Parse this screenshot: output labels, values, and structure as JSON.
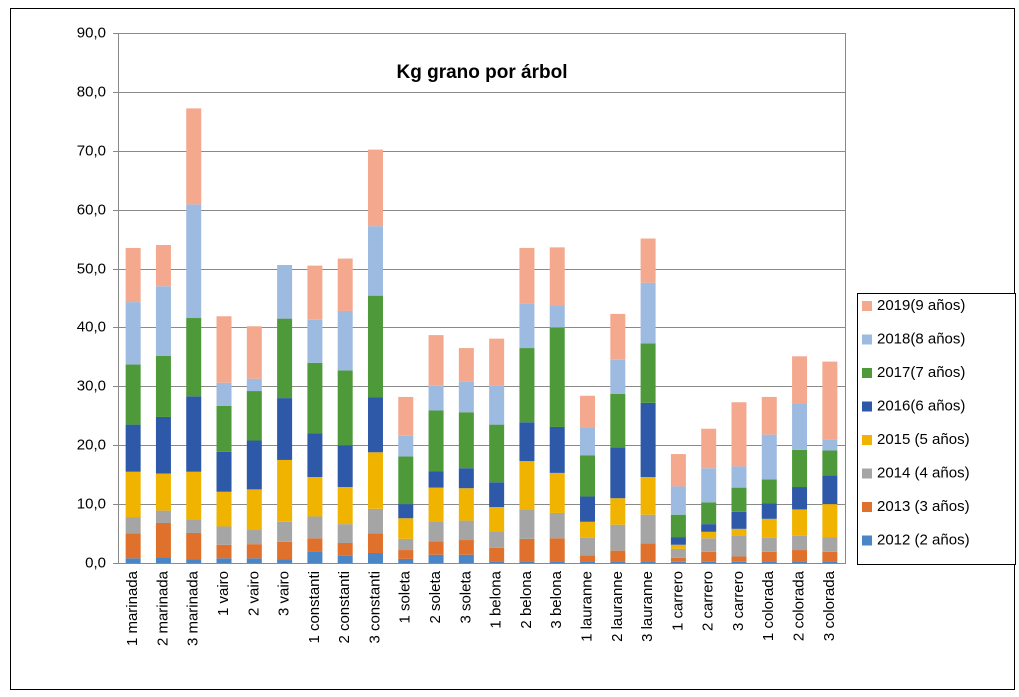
{
  "chart_data": {
    "type": "stacked-bar",
    "title": "Kg grano por árbol",
    "categories": [
      "1 marinada",
      "2 marinada",
      "3 marinada",
      "1 vairo",
      "2 vairo",
      "3 vairo",
      "1 constanti",
      "2 constanti",
      "3 constanti",
      "1 soleta",
      "2 soleta",
      "3 soleta",
      "1 belona",
      "2 belona",
      "3 belona",
      "1 lauranne",
      "2 lauranne",
      "3 lauranne",
      "1 carrero",
      "2 carrero",
      "3 carrero",
      "1 colorada",
      "2 colorada",
      "3 colorada"
    ],
    "series": [
      {
        "name": "2012 (2 años)",
        "color": "#4a86c5",
        "values": [
          0.8,
          1.0,
          0.6,
          0.8,
          0.8,
          0.6,
          2.0,
          1.2,
          1.7,
          0.7,
          1.4,
          1.4,
          0.3,
          0.3,
          0.3,
          0.3,
          0.3,
          0.3,
          0.2,
          0.2,
          0.2,
          0.3,
          0.3,
          0.3
        ]
      },
      {
        "name": "2013 (3 años)",
        "color": "#e0712c",
        "values": [
          4.2,
          5.8,
          4.5,
          2.3,
          2.4,
          3.0,
          2.2,
          2.2,
          3.3,
          1.5,
          2.3,
          2.5,
          2.3,
          3.8,
          3.9,
          1.0,
          1.8,
          3.0,
          0.7,
          1.7,
          0.9,
          1.6,
          1.9,
          1.6
        ]
      },
      {
        "name": "2014 (4 años)",
        "color": "#a5a5a5",
        "values": [
          2.8,
          2.1,
          2.3,
          3.1,
          2.4,
          3.4,
          3.7,
          3.2,
          4.2,
          1.9,
          3.4,
          3.3,
          2.8,
          4.9,
          4.3,
          3.0,
          4.4,
          4.9,
          1.5,
          2.3,
          3.6,
          2.4,
          2.4,
          2.5
        ]
      },
      {
        "name": "2015 (5 años)",
        "color": "#f0b400",
        "values": [
          7.7,
          6.3,
          8.1,
          5.9,
          6.9,
          10.5,
          6.7,
          6.3,
          9.6,
          3.5,
          5.7,
          5.5,
          4.1,
          8.3,
          6.8,
          2.7,
          4.5,
          6.4,
          0.7,
          1.1,
          1.1,
          3.2,
          4.5,
          5.6
        ]
      },
      {
        "name": "2016(6 años)",
        "color": "#2e58a8",
        "values": [
          8.0,
          9.6,
          12.8,
          6.8,
          8.3,
          10.5,
          7.4,
          7.1,
          9.3,
          2.4,
          2.8,
          3.4,
          4.2,
          6.6,
          7.8,
          4.3,
          8.6,
          12.6,
          1.3,
          1.3,
          2.9,
          2.6,
          3.8,
          4.9
        ]
      },
      {
        "name": "2017(7 años)",
        "color": "#4e9a3a",
        "values": [
          10.2,
          10.4,
          13.3,
          7.8,
          8.4,
          13.5,
          12.0,
          12.7,
          17.3,
          8.1,
          10.3,
          9.5,
          9.8,
          12.6,
          16.9,
          7.0,
          9.1,
          10.1,
          3.8,
          3.7,
          4.1,
          4.1,
          6.3,
          4.2
        ]
      },
      {
        "name": "2018(8 años)",
        "color": "#9dbbe0",
        "values": [
          10.6,
          11.8,
          19.3,
          3.9,
          2.1,
          9.1,
          7.3,
          10.1,
          11.8,
          3.5,
          4.2,
          5.2,
          6.7,
          7.6,
          3.8,
          4.7,
          5.8,
          10.3,
          4.8,
          5.8,
          3.6,
          7.6,
          7.8,
          1.8
        ]
      },
      {
        "name": "2019(9 años)",
        "color": "#f4a98e",
        "values": [
          9.2,
          7.0,
          16.3,
          11.3,
          8.9,
          0,
          9.2,
          8.9,
          13.0,
          6.6,
          8.6,
          5.7,
          7.9,
          9.4,
          9.8,
          5.4,
          7.8,
          7.5,
          5.5,
          6.7,
          10.9,
          6.4,
          8.1,
          13.3
        ]
      }
    ],
    "ylim": [
      0,
      90
    ],
    "yticks": [
      {
        "value": 0,
        "label": "0,0"
      },
      {
        "value": 10,
        "label": "10,0"
      },
      {
        "value": 20,
        "label": "20,0"
      },
      {
        "value": 30,
        "label": "30,0"
      },
      {
        "value": 40,
        "label": "40,0"
      },
      {
        "value": 50,
        "label": "50,0"
      },
      {
        "value": 60,
        "label": "60,0"
      },
      {
        "value": 70,
        "label": "70,0"
      },
      {
        "value": 80,
        "label": "80,0"
      },
      {
        "value": 90,
        "label": "90,0"
      }
    ],
    "grid": true,
    "legend": "right"
  }
}
